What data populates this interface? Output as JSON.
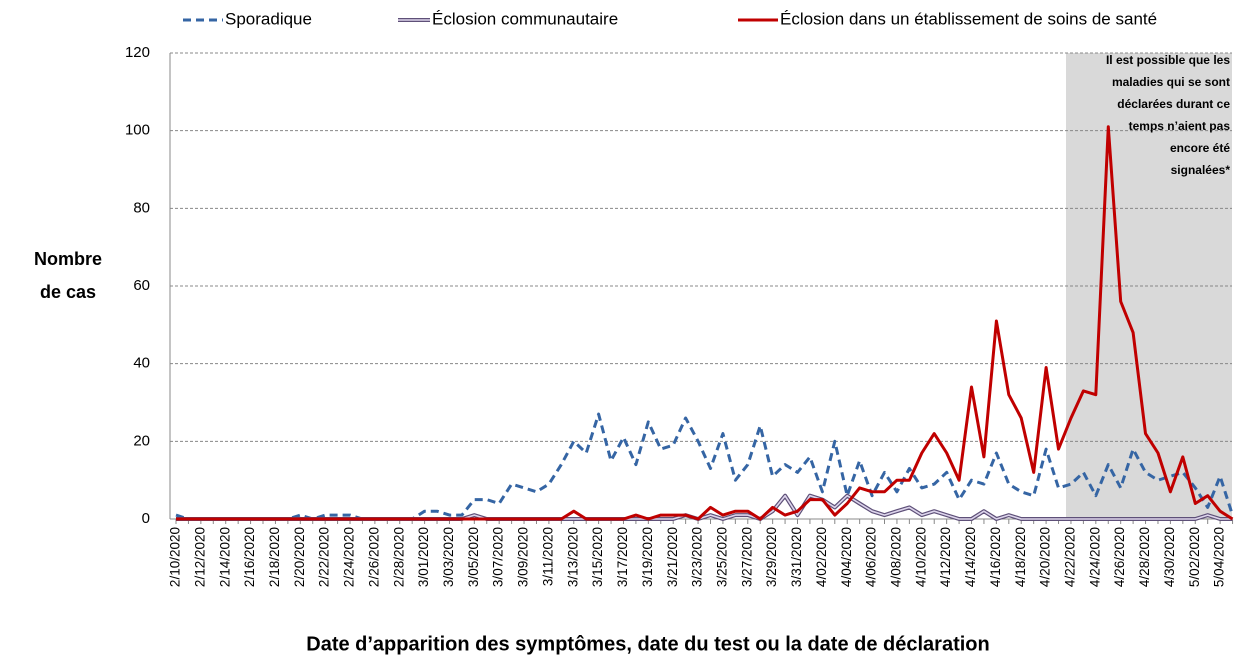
{
  "chart_data": {
    "type": "line",
    "ylabel": [
      "Nombre",
      "de cas"
    ],
    "xlabel": "Date d’apparition des symptômes, date du test ou la date de déclaration",
    "annotation": [
      "Il est possible que les",
      "maladies qui se sont",
      "déclarées durant ce",
      "temps n’aient pas",
      "encore été",
      "signalées*"
    ],
    "categories": [
      "2/10/2020",
      null,
      "2/12/2020",
      null,
      "2/14/2020",
      null,
      "2/16/2020",
      null,
      "2/18/2020",
      null,
      "2/20/2020",
      null,
      "2/22/2020",
      null,
      "2/24/2020",
      null,
      "2/26/2020",
      null,
      "2/28/2020",
      null,
      "3/01/2020",
      null,
      "3/03/2020",
      null,
      "3/05/2020",
      null,
      "3/07/2020",
      null,
      "3/09/2020",
      null,
      "3/11/2020",
      null,
      "3/13/2020",
      null,
      "3/15/2020",
      null,
      "3/17/2020",
      null,
      "3/19/2020",
      null,
      "3/21/2020",
      null,
      "3/23/2020",
      null,
      "3/25/2020",
      null,
      "3/27/2020",
      null,
      "3/29/2020",
      null,
      "3/31/2020",
      null,
      "4/02/2020",
      null,
      "4/04/2020",
      null,
      "4/06/2020",
      null,
      "4/08/2020",
      null,
      "4/10/2020",
      null,
      "4/12/2020",
      null,
      "4/14/2020",
      null,
      "4/16/2020",
      null,
      "4/18/2020",
      null,
      "4/20/2020",
      null,
      "4/22/2020",
      null,
      "4/24/2020",
      null,
      "4/26/2020",
      null,
      "4/28/2020",
      null,
      "4/30/2020",
      null,
      "5/02/2020",
      null,
      "5/04/2020",
      null
    ],
    "series": [
      {
        "name": "Sporadique",
        "color": "#3565a4",
        "style": "dashed",
        "values": [
          1,
          0,
          0,
          0,
          0,
          0,
          0,
          0,
          0,
          0,
          1,
          0,
          1,
          1,
          1,
          0,
          0,
          0,
          0,
          0,
          2,
          2,
          1,
          1,
          5,
          5,
          4,
          9,
          8,
          7,
          9,
          14,
          20,
          17,
          27,
          15,
          21,
          14,
          25,
          18,
          19,
          26,
          20,
          13,
          22,
          10,
          14,
          24,
          11,
          14,
          12,
          16,
          7,
          20,
          6,
          15,
          6,
          12,
          7,
          13,
          8,
          9,
          12,
          5,
          10,
          9,
          17,
          9,
          7,
          6,
          18,
          8,
          9,
          12,
          6,
          14,
          8,
          18,
          12,
          10,
          11,
          12,
          8,
          3,
          11,
          1
        ]
      },
      {
        "name": "Éclosion communautaire",
        "color": "#5e5078",
        "style": "outlined",
        "values": [
          0,
          0,
          0,
          0,
          0,
          0,
          0,
          0,
          0,
          0,
          0,
          0,
          0,
          0,
          0,
          0,
          0,
          0,
          0,
          0,
          0,
          0,
          0,
          0,
          1,
          0,
          0,
          0,
          0,
          0,
          0,
          0,
          0,
          0,
          0,
          0,
          0,
          0,
          0,
          0,
          0,
          1,
          0,
          1,
          0,
          1,
          1,
          0,
          2,
          6,
          1,
          6,
          5,
          3,
          6,
          4,
          2,
          1,
          2,
          3,
          1,
          2,
          1,
          0,
          0,
          2,
          0,
          1,
          0,
          0,
          0,
          0,
          0,
          0,
          0,
          0,
          0,
          0,
          0,
          0,
          0,
          0,
          0,
          1,
          0,
          0
        ]
      },
      {
        "name": "Éclosion dans un établissement de soins de santé",
        "color": "#c00000",
        "style": "solid",
        "values": [
          0,
          0,
          0,
          0,
          0,
          0,
          0,
          0,
          0,
          0,
          0,
          0,
          0,
          0,
          0,
          0,
          0,
          0,
          0,
          0,
          0,
          0,
          0,
          0,
          0,
          0,
          0,
          0,
          0,
          0,
          0,
          0,
          2,
          0,
          0,
          0,
          0,
          1,
          0,
          1,
          1,
          1,
          0,
          3,
          1,
          2,
          2,
          0,
          3,
          1,
          2,
          5,
          5,
          1,
          4,
          8,
          7,
          7,
          10,
          10,
          17,
          22,
          17,
          10,
          34,
          16,
          51,
          32,
          26,
          12,
          39,
          18,
          26,
          33,
          32,
          101,
          56,
          48,
          22,
          17,
          7,
          16,
          4,
          6,
          2,
          0
        ]
      }
    ],
    "ylim": [
      0,
      120
    ],
    "yticks": [
      0,
      20,
      40,
      60,
      80,
      100,
      120
    ],
    "grid": true
  }
}
